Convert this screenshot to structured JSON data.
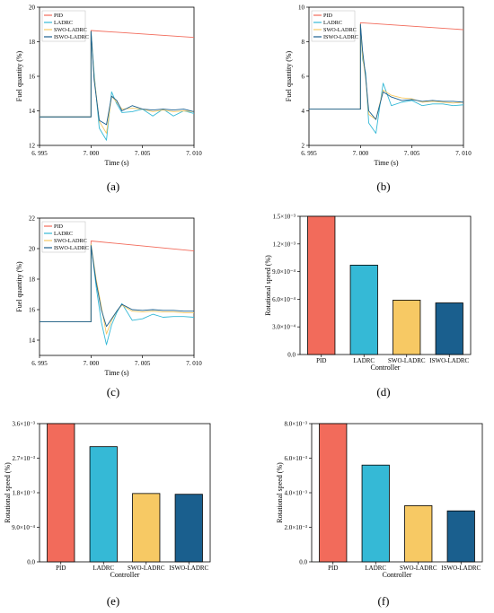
{
  "colors": {
    "PID": "#f26b5b",
    "LADRC": "#35b9d6",
    "SWO-LADRC": "#f7c964",
    "ISWO-LADRC": "#1a5f8e",
    "axis": "#000000"
  },
  "chart_data": [
    {
      "panel": "(a)",
      "type": "line",
      "xlabel": "Time (s)",
      "ylabel": "Fuel quantity (%)",
      "xlim": [
        6.995,
        7.01
      ],
      "ylim": [
        12,
        20
      ],
      "xticks": [
        6.995,
        7.0,
        7.005,
        7.01
      ],
      "xtick_labels": [
        "6. 995",
        "7. 000",
        "7. 005",
        "7. 010"
      ],
      "yticks": [
        12,
        14,
        16,
        18,
        20
      ],
      "ytick_labels": [
        "12",
        "14",
        "16",
        "18",
        "20"
      ],
      "legend": "top-left",
      "series": [
        {
          "name": "PID",
          "x": [
            6.995,
            7.0,
            7.0,
            7.01
          ],
          "y": [
            13.65,
            13.65,
            18.65,
            18.25
          ]
        },
        {
          "name": "LADRC",
          "x": [
            6.995,
            7.0,
            7.0,
            7.0003,
            7.0008,
            7.0015,
            7.002,
            7.0025,
            7.003,
            7.004,
            7.005,
            7.006,
            7.007,
            7.008,
            7.009,
            7.01
          ],
          "y": [
            13.65,
            13.65,
            18.6,
            16.2,
            13.0,
            12.3,
            15.1,
            14.4,
            13.9,
            13.95,
            14.1,
            13.7,
            14.1,
            13.7,
            14.0,
            13.85
          ]
        },
        {
          "name": "SWO-LADRC",
          "x": [
            6.995,
            7.0,
            7.0,
            7.0003,
            7.0008,
            7.0015,
            7.002,
            7.0025,
            7.003,
            7.004,
            7.005,
            7.006,
            7.007,
            7.008,
            7.009,
            7.01
          ],
          "y": [
            13.65,
            13.65,
            18.6,
            16.0,
            13.4,
            12.7,
            14.85,
            14.5,
            14.1,
            14.15,
            14.1,
            13.95,
            14.05,
            13.95,
            14.0,
            13.95
          ]
        },
        {
          "name": "ISWO-LADRC",
          "x": [
            6.995,
            7.0,
            7.0,
            7.0003,
            7.0008,
            7.0015,
            7.002,
            7.0025,
            7.003,
            7.004,
            7.005,
            7.006,
            7.007,
            7.008,
            7.009,
            7.01
          ],
          "y": [
            13.65,
            13.65,
            18.6,
            15.8,
            13.45,
            13.2,
            14.85,
            14.6,
            14.0,
            14.3,
            14.1,
            14.05,
            14.1,
            14.05,
            14.1,
            13.95
          ]
        }
      ]
    },
    {
      "panel": "(b)",
      "type": "line",
      "xlabel": "Time (s)",
      "ylabel": "Fuel quantity (%)",
      "xlim": [
        6.995,
        7.01
      ],
      "ylim": [
        2,
        10
      ],
      "xticks": [
        6.995,
        7.0,
        7.005,
        7.01
      ],
      "xtick_labels": [
        "6. 995",
        "7. 000",
        "7. 005",
        "7. 010"
      ],
      "yticks": [
        2,
        4,
        6,
        8,
        10
      ],
      "ytick_labels": [
        "2",
        "4",
        "6",
        "8",
        "10"
      ],
      "legend": "top-left",
      "series": [
        {
          "name": "PID",
          "x": [
            6.995,
            7.0,
            7.0,
            7.01
          ],
          "y": [
            4.1,
            4.1,
            9.1,
            8.7
          ]
        },
        {
          "name": "LADRC",
          "x": [
            6.995,
            7.0,
            7.0,
            7.0002,
            7.0005,
            7.0008,
            7.0015,
            7.0022,
            7.003,
            7.004,
            7.005,
            7.006,
            7.007,
            7.008,
            7.009,
            7.01
          ],
          "y": [
            4.1,
            4.1,
            9.0,
            7.0,
            6.2,
            3.3,
            2.7,
            5.6,
            4.3,
            4.5,
            4.6,
            4.3,
            4.4,
            4.4,
            4.3,
            4.35
          ]
        },
        {
          "name": "SWO-LADRC",
          "x": [
            6.995,
            7.0,
            7.0,
            7.0002,
            7.0005,
            7.0008,
            7.0015,
            7.0022,
            7.003,
            7.004,
            7.005,
            7.006,
            7.007,
            7.008,
            7.009,
            7.01
          ],
          "y": [
            4.1,
            4.1,
            9.0,
            7.2,
            5.9,
            3.8,
            3.5,
            5.2,
            4.9,
            4.75,
            4.7,
            4.5,
            4.55,
            4.5,
            4.45,
            4.5
          ]
        },
        {
          "name": "ISWO-LADRC",
          "x": [
            6.995,
            7.0,
            7.0,
            7.0002,
            7.0005,
            7.0008,
            7.0015,
            7.0022,
            7.003,
            7.004,
            7.005,
            7.006,
            7.007,
            7.008,
            7.009,
            7.01
          ],
          "y": [
            4.1,
            4.1,
            9.0,
            7.5,
            6.0,
            4.0,
            3.5,
            5.1,
            4.8,
            4.6,
            4.65,
            4.55,
            4.6,
            4.55,
            4.55,
            4.5
          ]
        }
      ]
    },
    {
      "panel": "(c)",
      "type": "line",
      "xlabel": "Time (s)",
      "ylabel": "Fuel quantity (%)",
      "xlim": [
        6.995,
        7.01
      ],
      "ylim": [
        13,
        22
      ],
      "xticks": [
        6.995,
        7.0,
        7.005,
        7.01
      ],
      "xtick_labels": [
        "6. 995",
        "7. 000",
        "7. 005",
        "7. 010"
      ],
      "yticks": [
        14,
        16,
        18,
        20,
        22
      ],
      "ytick_labels": [
        "14",
        "16",
        "18",
        "20",
        "22"
      ],
      "legend": "top-left",
      "series": [
        {
          "name": "PID",
          "x": [
            6.995,
            7.0,
            7.0,
            7.01
          ],
          "y": [
            15.2,
            15.2,
            20.5,
            19.85
          ]
        },
        {
          "name": "LADRC",
          "x": [
            6.995,
            7.0,
            7.0,
            7.0005,
            7.001,
            7.0015,
            7.002,
            7.0025,
            7.003,
            7.004,
            7.005,
            7.006,
            7.007,
            7.008,
            7.009,
            7.01
          ],
          "y": [
            15.2,
            15.2,
            20.3,
            17.5,
            15.2,
            13.7,
            15.0,
            15.8,
            16.4,
            15.3,
            15.4,
            15.7,
            15.5,
            15.55,
            15.55,
            15.5
          ]
        },
        {
          "name": "SWO-LADRC",
          "x": [
            6.995,
            7.0,
            7.0,
            7.0005,
            7.001,
            7.0015,
            7.002,
            7.0025,
            7.003,
            7.004,
            7.005,
            7.006,
            7.007,
            7.008,
            7.009,
            7.01
          ],
          "y": [
            15.2,
            15.2,
            20.3,
            18.0,
            16.2,
            14.4,
            15.3,
            15.9,
            16.3,
            15.9,
            15.85,
            15.9,
            15.85,
            15.85,
            15.8,
            15.8
          ]
        },
        {
          "name": "ISWO-LADRC",
          "x": [
            6.995,
            7.0,
            7.0,
            7.0005,
            7.001,
            7.0015,
            7.002,
            7.0025,
            7.003,
            7.004,
            7.005,
            7.006,
            7.007,
            7.008,
            7.009,
            7.01
          ],
          "y": [
            15.2,
            15.2,
            20.2,
            17.8,
            16.0,
            14.9,
            15.4,
            15.9,
            16.35,
            16.0,
            15.95,
            16.0,
            15.95,
            15.95,
            15.9,
            15.9
          ]
        }
      ]
    },
    {
      "panel": "(d)",
      "type": "bar",
      "xlabel": "Controller",
      "ylabel": "Rotational speed (%)",
      "categories": [
        "PID",
        "LADRC",
        "SWO-LADRC",
        "ISWO-LADRC"
      ],
      "values": [
        0.0015,
        0.00097,
        0.00059,
        0.00056
      ],
      "ylim": [
        0,
        0.0015
      ],
      "yticks": [
        0,
        0.0003,
        0.0006,
        0.0009,
        0.0012,
        0.0015
      ],
      "ytick_labels": [
        "0.0",
        "3.0×10⁻⁴",
        "6.0×10⁻⁴",
        "9.0×10⁻⁴",
        "1.2×10⁻³",
        "1.5×10⁻³"
      ]
    },
    {
      "panel": "(e)",
      "type": "bar",
      "xlabel": "Controller",
      "ylabel": "Rotational speed (%)",
      "categories": [
        "PID",
        "LADRC",
        "SWO-LADRC",
        "ISWO-LADRC"
      ],
      "values": [
        0.0036,
        0.003,
        0.00178,
        0.00176
      ],
      "ylim": [
        0,
        0.0036
      ],
      "yticks": [
        0,
        0.0009,
        0.0018,
        0.0027,
        0.0036
      ],
      "ytick_labels": [
        "0.0",
        "9.0×10⁻⁴",
        "1.8×10⁻³",
        "2.7×10⁻³",
        "3.6×10⁻³"
      ]
    },
    {
      "panel": "(f)",
      "type": "bar",
      "xlabel": "Controller",
      "ylabel": "Rotational speed (%)",
      "categories": [
        "PID",
        "LADRC",
        "SWO-LADRC",
        "ISWO-LADRC"
      ],
      "values": [
        0.008,
        0.0056,
        0.00325,
        0.00295
      ],
      "ylim": [
        0,
        0.008
      ],
      "yticks": [
        0,
        0.002,
        0.004,
        0.006,
        0.008
      ],
      "ytick_labels": [
        "0.0",
        "2.0×10⁻³",
        "4.0×10⁻³",
        "6.0×10⁻³",
        "8.0×10⁻³"
      ]
    }
  ]
}
